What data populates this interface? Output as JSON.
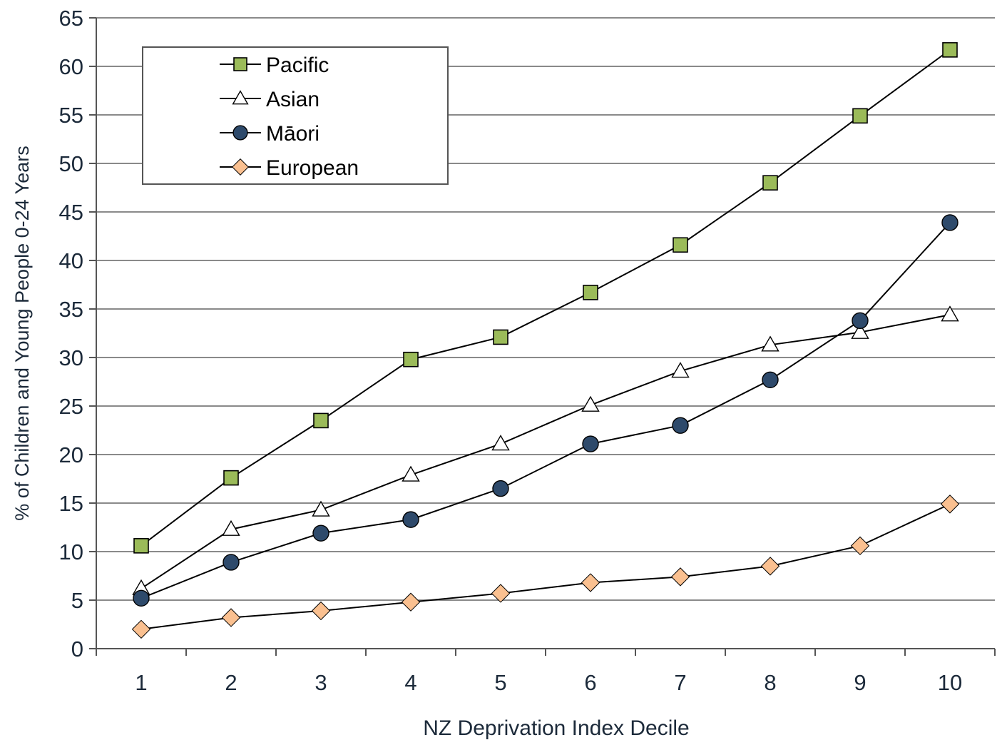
{
  "chart_data": {
    "type": "line",
    "title": "",
    "xlabel": "NZ Deprivation Index Decile",
    "ylabel": "% of Children and Young People 0-24 Years",
    "categories": [
      "1",
      "2",
      "3",
      "4",
      "5",
      "6",
      "7",
      "8",
      "9",
      "10"
    ],
    "ylim": [
      0,
      65
    ],
    "yticks": [
      0,
      5,
      10,
      15,
      20,
      25,
      30,
      35,
      40,
      45,
      50,
      55,
      60,
      65
    ],
    "grid": true,
    "legend_position": "top-left",
    "series": [
      {
        "name": "Pacific",
        "marker": "square",
        "color": "#9bbb59",
        "values": [
          10.6,
          17.6,
          23.5,
          29.8,
          32.1,
          36.7,
          41.6,
          48.0,
          54.9,
          61.7
        ]
      },
      {
        "name": "Asian",
        "marker": "triangle",
        "color": "#ffffff",
        "values": [
          6.2,
          12.3,
          14.3,
          17.9,
          21.1,
          25.1,
          28.6,
          31.3,
          32.6,
          34.4
        ]
      },
      {
        "name": "Māori",
        "marker": "circle",
        "color": "#2e4a6b",
        "values": [
          5.2,
          8.9,
          11.9,
          13.3,
          16.5,
          21.1,
          23.0,
          27.7,
          33.8,
          43.9
        ]
      },
      {
        "name": "European",
        "marker": "diamond",
        "color": "#fac090",
        "values": [
          2.0,
          3.2,
          3.9,
          4.8,
          5.7,
          6.8,
          7.4,
          8.5,
          10.6,
          14.9
        ]
      }
    ]
  }
}
